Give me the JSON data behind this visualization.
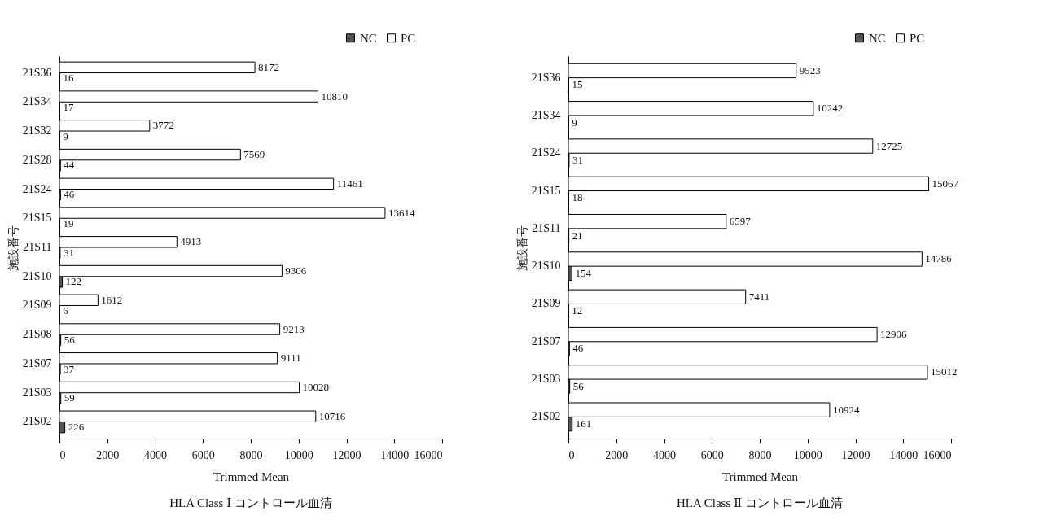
{
  "chart_data": [
    {
      "type": "bar",
      "orientation": "horizontal",
      "title": "HLA Class Ⅰ コントロール血清",
      "xlabel": "Trimmed Mean",
      "ylabel": "施設番号",
      "categories": [
        "21S36",
        "21S34",
        "21S32",
        "21S28",
        "21S24",
        "21S15",
        "21S11",
        "21S10",
        "21S09",
        "21S08",
        "21S07",
        "21S03",
        "21S02"
      ],
      "series": [
        {
          "name": "NC",
          "color": "#555555",
          "values": [
            16,
            17,
            9,
            44,
            46,
            19,
            31,
            122,
            6,
            56,
            37,
            59,
            226
          ]
        },
        {
          "name": "PC",
          "color": "#ffffff",
          "values": [
            8172,
            10810,
            3772,
            7569,
            11461,
            13614,
            4913,
            9306,
            1612,
            9213,
            9111,
            10028,
            10716
          ]
        }
      ],
      "xlim": [
        0,
        16000
      ],
      "xticks": [
        0,
        2000,
        4000,
        6000,
        8000,
        10000,
        12000,
        14000,
        16000
      ],
      "grid": false,
      "legend": "top right",
      "data_labels": true
    },
    {
      "type": "bar",
      "orientation": "horizontal",
      "title": "HLA Class Ⅱ コントロール血清",
      "xlabel": "Trimmed Mean",
      "ylabel": "施設番号",
      "categories": [
        "21S36",
        "21S34",
        "21S24",
        "21S15",
        "21S11",
        "21S10",
        "21S09",
        "21S07",
        "21S03",
        "21S02"
      ],
      "series": [
        {
          "name": "NC",
          "color": "#555555",
          "values": [
            15,
            9,
            31,
            18,
            21,
            154,
            12,
            46,
            56,
            161
          ]
        },
        {
          "name": "PC",
          "color": "#ffffff",
          "values": [
            9523,
            10242,
            12725,
            15067,
            6597,
            14786,
            7411,
            12906,
            15012,
            10924
          ]
        }
      ],
      "xlim": [
        0,
        16000
      ],
      "xticks": [
        0,
        2000,
        4000,
        6000,
        8000,
        10000,
        12000,
        14000,
        16000
      ],
      "grid": false,
      "legend": "top right",
      "data_labels": true
    }
  ]
}
